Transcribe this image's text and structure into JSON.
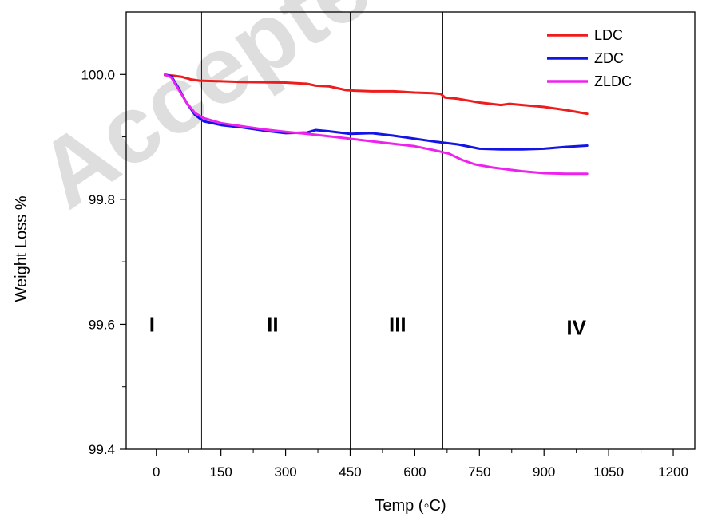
{
  "watermark": "Accepted",
  "chart_data": {
    "type": "line",
    "title": "",
    "xlabel": "Temp (◦C)",
    "ylabel": "Weight Loss %",
    "xlim": [
      -70,
      1250
    ],
    "ylim": [
      99.4,
      100.1
    ],
    "x_ticks": [
      0,
      150,
      300,
      450,
      600,
      750,
      900,
      1050,
      1200
    ],
    "y_ticks": [
      99.4,
      99.6,
      99.8,
      100.0
    ],
    "y_tick_labels": [
      "99.4",
      "99.6",
      "99.8",
      "100.0"
    ],
    "grid": false,
    "legend_position": "top-right",
    "region_boundaries": [
      105,
      450,
      665
    ],
    "regions": [
      {
        "label": "I",
        "x": -10,
        "y": 99.6
      },
      {
        "label": "II",
        "x": 270,
        "y": 99.6
      },
      {
        "label": "III",
        "x": 560,
        "y": 99.6
      },
      {
        "label": "IV",
        "x": 975,
        "y": 99.595
      }
    ],
    "series": [
      {
        "name": "LDC",
        "color": "#ee1c1c",
        "x": [
          20,
          40,
          60,
          80,
          100,
          150,
          200,
          300,
          350,
          370,
          400,
          420,
          440,
          460,
          500,
          550,
          600,
          640,
          660,
          670,
          700,
          750,
          800,
          820,
          850,
          900,
          950,
          1000
        ],
        "y": [
          99.999,
          99.998,
          99.996,
          99.992,
          99.99,
          99.989,
          99.988,
          99.987,
          99.985,
          99.982,
          99.981,
          99.978,
          99.975,
          99.974,
          99.973,
          99.973,
          99.971,
          99.97,
          99.969,
          99.963,
          99.961,
          99.955,
          99.951,
          99.953,
          99.951,
          99.948,
          99.943,
          99.937
        ]
      },
      {
        "name": "ZDC",
        "color": "#1414e6",
        "x": [
          20,
          35,
          50,
          70,
          90,
          110,
          150,
          200,
          250,
          300,
          350,
          370,
          400,
          450,
          500,
          550,
          600,
          650,
          700,
          750,
          800,
          850,
          900,
          950,
          1000
        ],
        "y": [
          100.0,
          99.997,
          99.98,
          99.955,
          99.935,
          99.925,
          99.919,
          99.915,
          99.91,
          99.906,
          99.907,
          99.911,
          99.909,
          99.905,
          99.906,
          99.902,
          99.897,
          99.892,
          99.888,
          99.881,
          99.88,
          99.88,
          99.881,
          99.884,
          99.886
        ]
      },
      {
        "name": "ZLDC",
        "color": "#ee22ee",
        "x": [
          20,
          35,
          50,
          70,
          90,
          110,
          150,
          200,
          250,
          300,
          350,
          400,
          450,
          500,
          550,
          600,
          650,
          680,
          710,
          740,
          780,
          850,
          900,
          950,
          1000
        ],
        "y": [
          100.0,
          99.995,
          99.978,
          99.955,
          99.938,
          99.93,
          99.922,
          99.917,
          99.912,
          99.908,
          99.905,
          99.901,
          99.897,
          99.893,
          99.889,
          99.885,
          99.878,
          99.873,
          99.863,
          99.856,
          99.851,
          99.845,
          99.842,
          99.841,
          99.841
        ]
      }
    ]
  }
}
